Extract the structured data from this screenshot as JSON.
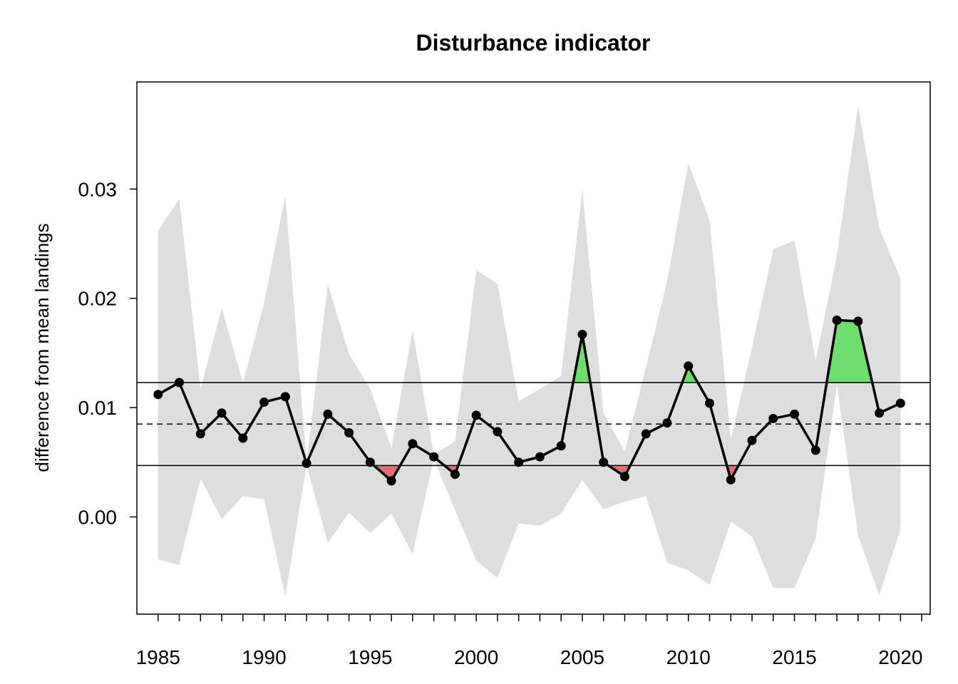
{
  "chart_data": {
    "type": "line",
    "title": "Disturbance indicator",
    "xlabel": "",
    "ylabel": "difference from mean landings",
    "xlim": [
      1984,
      2021.4
    ],
    "ylim": [
      -0.0089,
      0.0398
    ],
    "x_ticks": [
      1985,
      1990,
      1995,
      2000,
      2005,
      2010,
      2015,
      2020
    ],
    "x_minor_ticks_every": 1,
    "y_ticks": [
      "0.00",
      "0.01",
      "0.02",
      "0.03"
    ],
    "y_tick_values": [
      0.0,
      0.01,
      0.02,
      0.03
    ],
    "grid": false,
    "legend": "none",
    "series": [
      {
        "x": [
          1985,
          1986,
          1987,
          1988,
          1989,
          1990,
          1991,
          1992,
          1993,
          1994,
          1995,
          1996,
          1997,
          1998,
          1999,
          2000,
          2001,
          2002,
          2003,
          2004,
          2005,
          2006,
          2007,
          2008,
          2009,
          2010,
          2011,
          2012,
          2013,
          2014,
          2015,
          2016,
          2017,
          2018,
          2019,
          2020
        ],
        "values": [
          0.0112,
          0.0123,
          0.0076,
          0.0095,
          0.0072,
          0.0105,
          0.011,
          0.0049,
          0.0094,
          0.0077,
          0.005,
          0.0033,
          0.0067,
          0.0055,
          0.0039,
          0.0093,
          0.0078,
          0.005,
          0.0055,
          0.0065,
          0.0167,
          0.005,
          0.0037,
          0.0076,
          0.0086,
          0.0138,
          0.0104,
          0.0034,
          0.007,
          0.009,
          0.0094,
          0.0061,
          0.018,
          0.0179,
          0.0095,
          0.0104
        ]
      }
    ],
    "interval": {
      "upper": [
        0.0262,
        0.0291,
        0.0117,
        0.0191,
        0.0123,
        0.0196,
        0.0294,
        0.005,
        0.0213,
        0.0149,
        0.0117,
        0.0063,
        0.0171,
        0.0057,
        0.0069,
        0.0226,
        0.0213,
        0.0106,
        0.0117,
        0.0129,
        0.03,
        0.0095,
        0.006,
        0.0137,
        0.0216,
        0.0324,
        0.0271,
        0.0071,
        0.0155,
        0.0245,
        0.0253,
        0.0143,
        0.0239,
        0.0376,
        0.0264,
        0.0218
      ],
      "lower": [
        -0.0039,
        -0.0044,
        0.0035,
        -0.0002,
        0.0019,
        0.0016,
        -0.0073,
        0.0047,
        -0.0024,
        0.0004,
        -0.0015,
        0.0003,
        -0.0034,
        0.0053,
        0.0006,
        -0.004,
        -0.0056,
        -0.0006,
        -0.0008,
        0.0003,
        0.0034,
        0.0007,
        0.0014,
        0.0019,
        -0.0042,
        -0.0049,
        -0.0062,
        -0.0004,
        -0.0018,
        -0.0065,
        -0.0065,
        -0.002,
        0.0121,
        -0.0017,
        -0.0072,
        -0.0011
      ]
    },
    "hlines": {
      "upper": 0.0123,
      "mean": 0.0085,
      "lower": 0.0047
    },
    "colors": {
      "interval": "#dedede",
      "above": "#6ddd6d",
      "below": "#e07070",
      "line": "#000000"
    }
  }
}
